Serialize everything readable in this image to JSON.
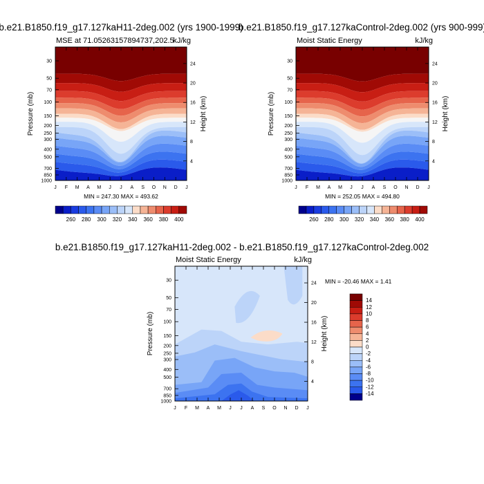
{
  "colors": [
    "#00008c",
    "#0a1ec8",
    "#1a3ce0",
    "#2a5aeb",
    "#3c73f0",
    "#5a8cf5",
    "#78a5f7",
    "#9bbef8",
    "#bcd4f9",
    "#d7e6fa",
    "#f5f5f5",
    "#fbdcc8",
    "#f5b496",
    "#ee8c6e",
    "#e6644b",
    "#dc3c2d",
    "#c81e14",
    "#a00a05",
    "#780000"
  ],
  "panels": [
    {
      "title": "b.e21.B1850.f19_g17.127kaH11-2deg.002 (yrs 1900-1999)",
      "left_label": "MSE at 71.05263157894737,202.5",
      "right_label": "kJ/kg",
      "minmax": "MIN = 247.30 MAX = 493.62",
      "ylabel": "Pressure (mb)",
      "y2label": "Height (km)"
    },
    {
      "title": "b.e21.B1850.f19_g17.127kaControl-2deg.002 (yrs 900-999)",
      "left_label": "Moist Static Energy",
      "right_label": "kJ/kg",
      "minmax": "MIN = 252.05 MAX = 494.80",
      "ylabel": "Pressure (mb)",
      "y2label": "Height (km)"
    },
    {
      "title": "b.e21.B1850.f19_g17.127kaH11-2deg.002 - b.e21.B1850.f19_g17.127kaControl-2deg.002",
      "left_label": "Moist Static Energy",
      "right_label": "kJ/kg",
      "minmax": "MIN = -20.46 MAX =   1.41",
      "ylabel": "Pressure (mb)",
      "y2label": "Height (km)"
    }
  ],
  "chart_data": [
    {
      "type": "heatmap",
      "title": "b.e21.B1850.f19_g17.127kaH11-2deg.002 (yrs 1900-1999)",
      "ylabel": "Pressure (mb)",
      "y2label": "Height (km)",
      "months": [
        "J",
        "F",
        "M",
        "A",
        "M",
        "J",
        "J",
        "A",
        "S",
        "O",
        "N",
        "D",
        "J"
      ],
      "pressure_ticks": [
        30,
        50,
        70,
        100,
        150,
        200,
        250,
        300,
        400,
        500,
        700,
        850,
        1000
      ],
      "height_ticks": [
        4,
        8,
        12,
        16,
        20,
        24
      ],
      "yscale": "log",
      "ylim": [
        1000,
        20
      ],
      "min": 247.3,
      "max": 493.62,
      "colorbar": {
        "orientation": "horizontal",
        "levels": [
          250,
          260,
          270,
          280,
          290,
          300,
          310,
          320,
          330,
          340,
          350,
          360,
          370,
          380,
          390,
          400
        ],
        "labels": [
          "260",
          "280",
          "300",
          "320",
          "340",
          "360",
          "380",
          "400"
        ]
      }
    },
    {
      "type": "heatmap",
      "title": "b.e21.B1850.f19_g17.127kaControl-2deg.002 (yrs 900-999)",
      "ylabel": "Pressure (mb)",
      "y2label": "Height (km)",
      "months": [
        "J",
        "F",
        "M",
        "A",
        "M",
        "J",
        "J",
        "A",
        "S",
        "O",
        "N",
        "D",
        "J"
      ],
      "pressure_ticks": [
        30,
        50,
        70,
        100,
        150,
        200,
        250,
        300,
        400,
        500,
        700,
        850,
        1000
      ],
      "height_ticks": [
        4,
        8,
        12,
        16,
        20,
        24
      ],
      "yscale": "log",
      "ylim": [
        1000,
        20
      ],
      "min": 252.05,
      "max": 494.8,
      "colorbar": {
        "orientation": "horizontal",
        "levels": [
          250,
          260,
          270,
          280,
          290,
          300,
          310,
          320,
          330,
          340,
          350,
          360,
          370,
          380,
          390,
          400
        ],
        "labels": [
          "260",
          "280",
          "300",
          "320",
          "340",
          "360",
          "380",
          "400"
        ]
      }
    },
    {
      "type": "heatmap",
      "title": "b.e21.B1850.f19_g17.127kaH11-2deg.002 - b.e21.B1850.f19_g17.127kaControl-2deg.002",
      "ylabel": "Pressure (mb)",
      "y2label": "Height (km)",
      "months": [
        "J",
        "F",
        "M",
        "A",
        "M",
        "J",
        "J",
        "A",
        "S",
        "O",
        "N",
        "D",
        "J"
      ],
      "pressure_ticks": [
        30,
        50,
        70,
        100,
        150,
        200,
        250,
        300,
        400,
        500,
        700,
        850,
        1000
      ],
      "height_ticks": [
        4,
        8,
        12,
        16,
        20,
        24
      ],
      "yscale": "log",
      "ylim": [
        1000,
        20
      ],
      "min": -20.46,
      "max": 1.41,
      "colorbar": {
        "orientation": "vertical",
        "levels": [
          -14,
          -12,
          -10,
          -8,
          -6,
          -4,
          -2,
          0,
          2,
          4,
          6,
          8,
          10,
          12,
          14
        ],
        "labels": [
          "14",
          "12",
          "10",
          "8",
          "6",
          "4",
          "2",
          "0",
          "-2",
          "-4",
          "-6",
          "-8",
          "-10",
          "-12",
          "-14"
        ]
      }
    }
  ]
}
